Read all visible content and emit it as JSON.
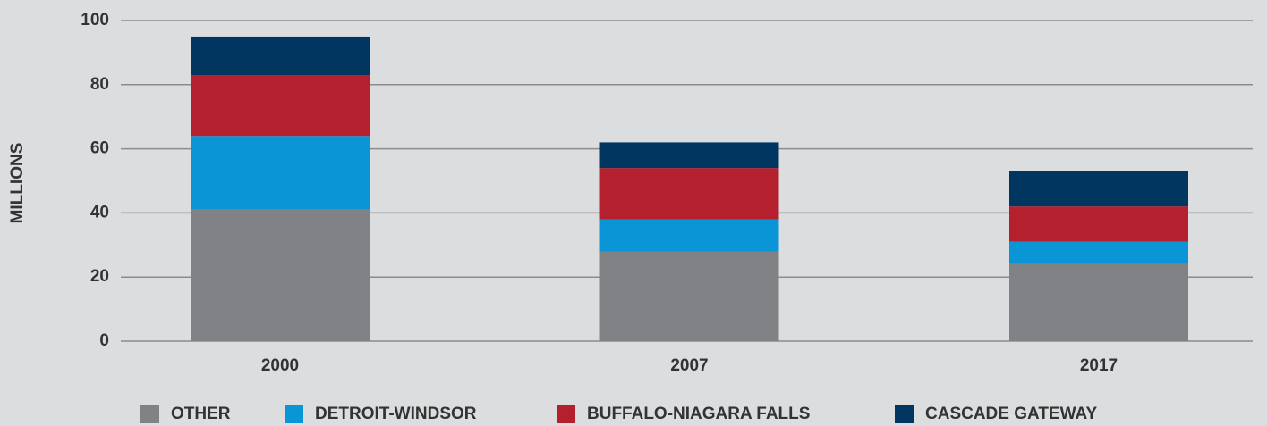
{
  "chart_data": {
    "type": "stacked-bar",
    "y_label": "MILLIONS",
    "categories": [
      "2000",
      "2007",
      "2017"
    ],
    "series": [
      {
        "name": "OTHER",
        "color": "#818285",
        "values": [
          41,
          28,
          24
        ]
      },
      {
        "name": "DETROIT-WINDSOR",
        "color": "#0a96d6",
        "values": [
          23,
          10,
          7
        ]
      },
      {
        "name": "BUFFALO-NIAGARA FALLS",
        "color": "#b5202e",
        "values": [
          19,
          16,
          11
        ]
      },
      {
        "name": "CASCADE GATEWAY",
        "color": "#003660",
        "values": [
          12,
          8,
          11
        ]
      }
    ],
    "ylim": [
      0,
      100
    ],
    "yticks": [
      0,
      20,
      40,
      60,
      80,
      100
    ],
    "grid": true
  }
}
